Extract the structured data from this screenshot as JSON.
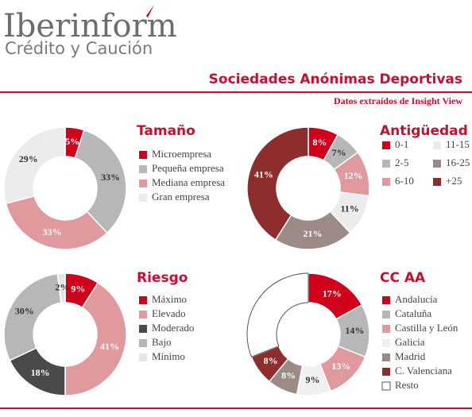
{
  "header": {
    "brand": "Iberinform",
    "brand_sub": "Crédito y Caución",
    "title": "Sociedades Anónimas Deportivas",
    "subtitle": "Datos extraídos de Insight View"
  },
  "chart_data": [
    {
      "type": "pie",
      "title": "Tamaño",
      "categories": [
        "Microempresa",
        "Pequeña empresa",
        "Mediana empresa",
        "Gran empresa"
      ],
      "values": [
        5,
        33,
        33,
        29
      ],
      "value_labels": [
        "5%",
        "33%",
        "33%",
        "29%"
      ],
      "colors": [
        "#d0021b",
        "#b7b7b7",
        "#e0999c",
        "#ececec"
      ]
    },
    {
      "type": "pie",
      "title": "Antigüedad",
      "categories": [
        "0-1",
        "2-5",
        "6-10",
        "11-15",
        "16-25",
        "+25"
      ],
      "values": [
        8,
        7,
        12,
        11,
        21,
        41
      ],
      "value_labels": [
        "8%",
        "7%",
        "12%",
        "11%",
        "21%",
        "41%"
      ],
      "colors": [
        "#d0021b",
        "#b7b7b7",
        "#e0999c",
        "#ececec",
        "#9b8a86",
        "#8e2d2d"
      ]
    },
    {
      "type": "pie",
      "title": "Riesgo",
      "categories": [
        "Máximo",
        "Elevado",
        "Moderado",
        "Bajo",
        "Mínimo"
      ],
      "values": [
        9,
        41,
        18,
        30,
        2
      ],
      "value_labels": [
        "9%",
        "41%",
        "18%",
        "30%",
        "2%"
      ],
      "colors": [
        "#d0021b",
        "#e0999c",
        "#4a4a4a",
        "#b7b7b7",
        "#e6e6e6"
      ]
    },
    {
      "type": "pie",
      "title": "CC AA",
      "categories": [
        "Andalucía",
        "Cataluña",
        "Castilla y León",
        "Galicia",
        "Madrid",
        "C. Valenciana",
        "Resto"
      ],
      "values": [
        17,
        14,
        13,
        9,
        8,
        8,
        31
      ],
      "value_labels": [
        "17%",
        "14%",
        "13%",
        "9%",
        "8%",
        "8%",
        null
      ],
      "colors": [
        "#d0021b",
        "#b7b7b7",
        "#e0999c",
        "#f0f0f0",
        "#9b8a86",
        "#8e2d2d",
        "#ffffff"
      ]
    }
  ]
}
